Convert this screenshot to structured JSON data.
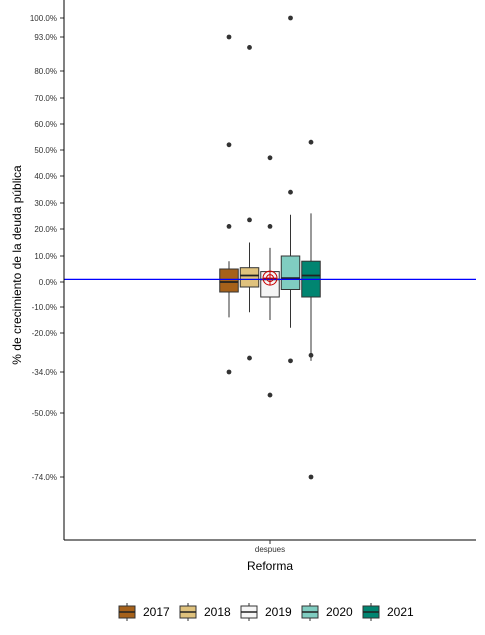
{
  "chart_data": {
    "type": "boxplot",
    "xlabel": "Reforma",
    "ylabel": "% de crecimiento de la deuda pública",
    "categories": [
      "despues"
    ],
    "ylim": [
      -100,
      100
    ],
    "y_tick_labels": [
      {
        "value": 100,
        "label": "100.0%"
      },
      {
        "value": 93,
        "label": "93.0%"
      },
      {
        "value": 80,
        "label": "80.0%"
      },
      {
        "value": 70,
        "label": "70.0%"
      },
      {
        "value": 60,
        "label": "60.0%"
      },
      {
        "value": 50,
        "label": "50.0%"
      },
      {
        "value": 40,
        "label": "40.0%"
      },
      {
        "value": 30,
        "label": "30.0%"
      },
      {
        "value": 20,
        "label": "20.0%"
      },
      {
        "value": 10,
        "label": "10.0%"
      },
      {
        "value": 0,
        "label": "0.0%"
      },
      {
        "value": -10,
        "label": "-10.0%"
      },
      {
        "value": -20,
        "label": "-20.0%"
      },
      {
        "value": -34,
        "label": "-34.0%"
      },
      {
        "value": -50,
        "label": "-50.0%"
      },
      {
        "value": -74,
        "label": "-74.0%"
      }
    ],
    "reference_line": {
      "value": 1,
      "color": "#0000ff"
    },
    "mean_marker": {
      "value": 1.5,
      "color": "#cc0000"
    },
    "legend_position": "bottom",
    "grid": false,
    "series": [
      {
        "name": "2017",
        "color": "#a6611a",
        "min": -14,
        "q1": -4,
        "median": 0,
        "q3": 5,
        "max": 8,
        "outliers": [
          -34,
          21,
          52,
          93
        ]
      },
      {
        "name": "2018",
        "color": "#dfc27d",
        "min": -12,
        "q1": -2,
        "median": 2.5,
        "q3": 5.5,
        "max": 15,
        "outliers": [
          -29,
          23.5,
          89
        ]
      },
      {
        "name": "2019",
        "color": "#f5f5f5",
        "min": -15,
        "q1": -6,
        "median": 1,
        "q3": 4,
        "max": 13,
        "outliers": [
          -43,
          21,
          47
        ]
      },
      {
        "name": "2020",
        "color": "#80cdc1",
        "min": -18,
        "q1": -3,
        "median": 1.5,
        "q3": 10,
        "max": 25.5,
        "outliers": [
          -30,
          34,
          100
        ]
      },
      {
        "name": "2021",
        "color": "#018571",
        "min": -30,
        "q1": -6,
        "median": 2.5,
        "q3": 8,
        "max": 26,
        "outliers": [
          -74,
          -28,
          53
        ]
      }
    ]
  }
}
